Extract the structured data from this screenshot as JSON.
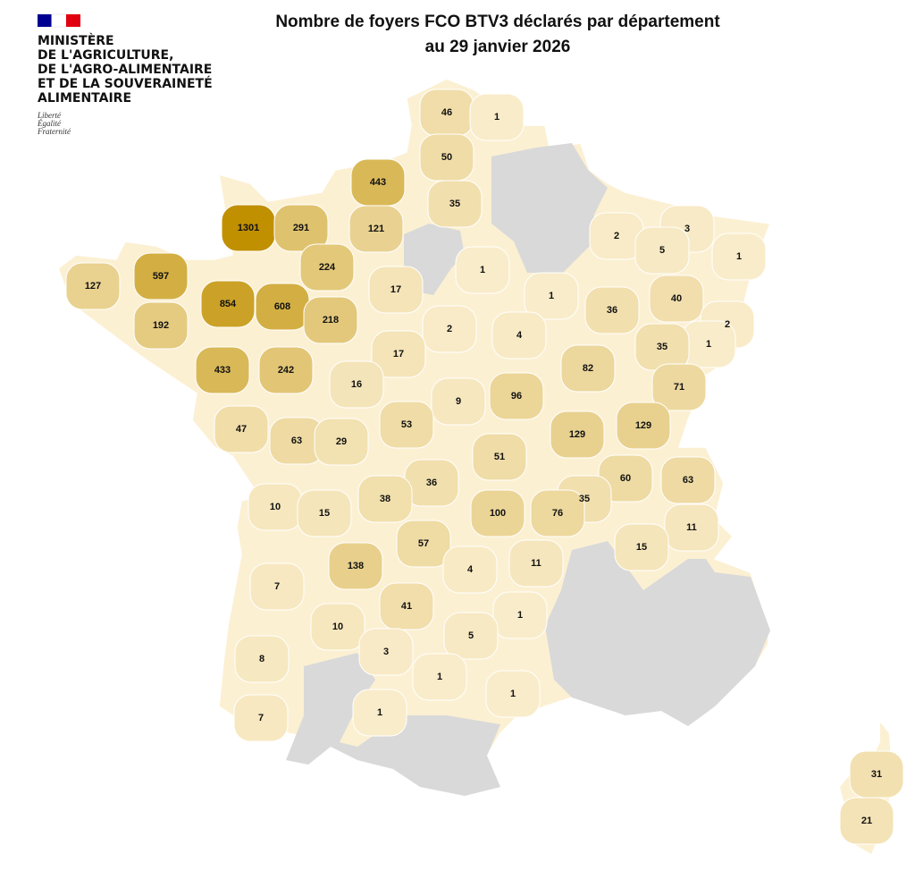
{
  "header": {
    "ministry": [
      "MINISTÈRE",
      "DE L'AGRICULTURE,",
      "DE L'AGRO-ALIMENTAIRE",
      "ET DE LA SOUVERAINETÉ",
      "ALIMENTAIRE"
    ],
    "motto": [
      "Liberté",
      "Égalité",
      "Fraternité"
    ]
  },
  "title": [
    "Nombre de foyers FCO BTV3 déclarés par département",
    "au 29 janvier 2026"
  ],
  "values": [
    46,
    1,
    50,
    443,
    35,
    1301,
    291,
    121,
    2,
    3,
    5,
    1,
    597,
    224,
    1,
    127,
    17,
    1,
    40,
    854,
    608,
    36,
    192,
    218,
    2,
    4,
    2,
    1,
    35,
    17,
    82,
    433,
    242,
    16,
    71,
    96,
    9,
    53,
    129,
    129,
    47,
    63,
    29,
    51,
    60,
    63,
    36,
    38,
    35,
    10,
    15,
    100,
    76,
    11,
    57,
    15,
    138,
    4,
    11,
    7,
    41,
    1,
    10,
    5,
    8,
    3,
    1,
    1,
    1,
    7,
    31,
    21
  ]
}
